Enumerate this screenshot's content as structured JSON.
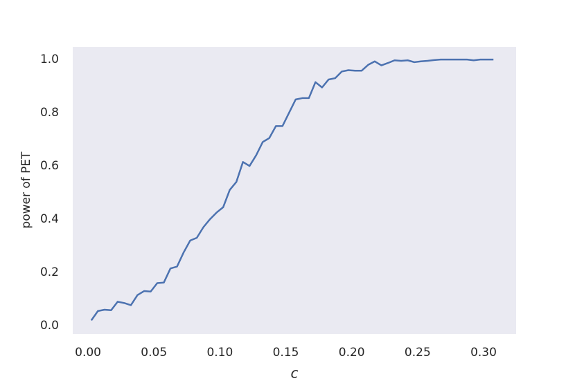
{
  "chart_data": {
    "type": "line",
    "xlabel": "c",
    "ylabel": "power of PET",
    "x": [
      0.0025,
      0.0075,
      0.0125,
      0.0175,
      0.0225,
      0.0275,
      0.0325,
      0.0375,
      0.0425,
      0.0475,
      0.0525,
      0.0575,
      0.0625,
      0.0675,
      0.0725,
      0.0775,
      0.0825,
      0.0875,
      0.0925,
      0.0975,
      0.1025,
      0.1075,
      0.1125,
      0.1175,
      0.1225,
      0.1275,
      0.1325,
      0.1375,
      0.1425,
      0.1475,
      0.1525,
      0.1575,
      0.1625,
      0.1675,
      0.1725,
      0.1775,
      0.1825,
      0.1875,
      0.1925,
      0.1975,
      0.2025,
      0.2075,
      0.2125,
      0.2175,
      0.2225,
      0.2275,
      0.2325,
      0.2375,
      0.2425,
      0.2475,
      0.2525,
      0.2575,
      0.2625,
      0.2675,
      0.2725,
      0.2775,
      0.2825,
      0.2875,
      0.2925,
      0.2975,
      0.3025,
      0.3075
    ],
    "series": [
      {
        "color": "#4c72b0",
        "values": [
          0.02,
          0.055,
          0.06,
          0.058,
          0.09,
          0.085,
          0.077,
          0.115,
          0.13,
          0.128,
          0.16,
          0.162,
          0.215,
          0.222,
          0.275,
          0.32,
          0.33,
          0.37,
          0.4,
          0.425,
          0.445,
          0.51,
          0.54,
          0.615,
          0.6,
          0.64,
          0.69,
          0.705,
          0.75,
          0.75,
          0.8,
          0.85,
          0.855,
          0.855,
          0.915,
          0.895,
          0.925,
          0.93,
          0.955,
          0.96,
          0.958,
          0.958,
          0.98,
          0.993,
          0.978,
          0.987,
          0.997,
          0.995,
          0.997,
          0.99,
          0.993,
          0.995,
          0.998,
          1.0,
          1.0,
          1.0,
          1.0,
          1.0,
          0.997,
          1.0,
          1.0,
          1.0
        ]
      }
    ],
    "xlim": [
      -0.0116,
      0.3247
    ],
    "ylim": [
      -0.031,
      1.047
    ],
    "xticks": [
      {
        "value": 0,
        "label": "0.00"
      },
      {
        "value": 0.05,
        "label": "0.05"
      },
      {
        "value": 0.1,
        "label": "0.10"
      },
      {
        "value": 0.15,
        "label": "0.15"
      },
      {
        "value": 0.2,
        "label": "0.20"
      },
      {
        "value": 0.25,
        "label": "0.25"
      },
      {
        "value": 0.3,
        "label": "0.30"
      }
    ],
    "yticks": [
      {
        "value": 0,
        "label": "0.0"
      },
      {
        "value": 0.2,
        "label": "0.2"
      },
      {
        "value": 0.4,
        "label": "0.4"
      },
      {
        "value": 0.6,
        "label": "0.6"
      },
      {
        "value": 0.8,
        "label": "0.8"
      },
      {
        "value": 1,
        "label": "1.0"
      }
    ],
    "grid": false,
    "background": "#eaeaf2"
  }
}
